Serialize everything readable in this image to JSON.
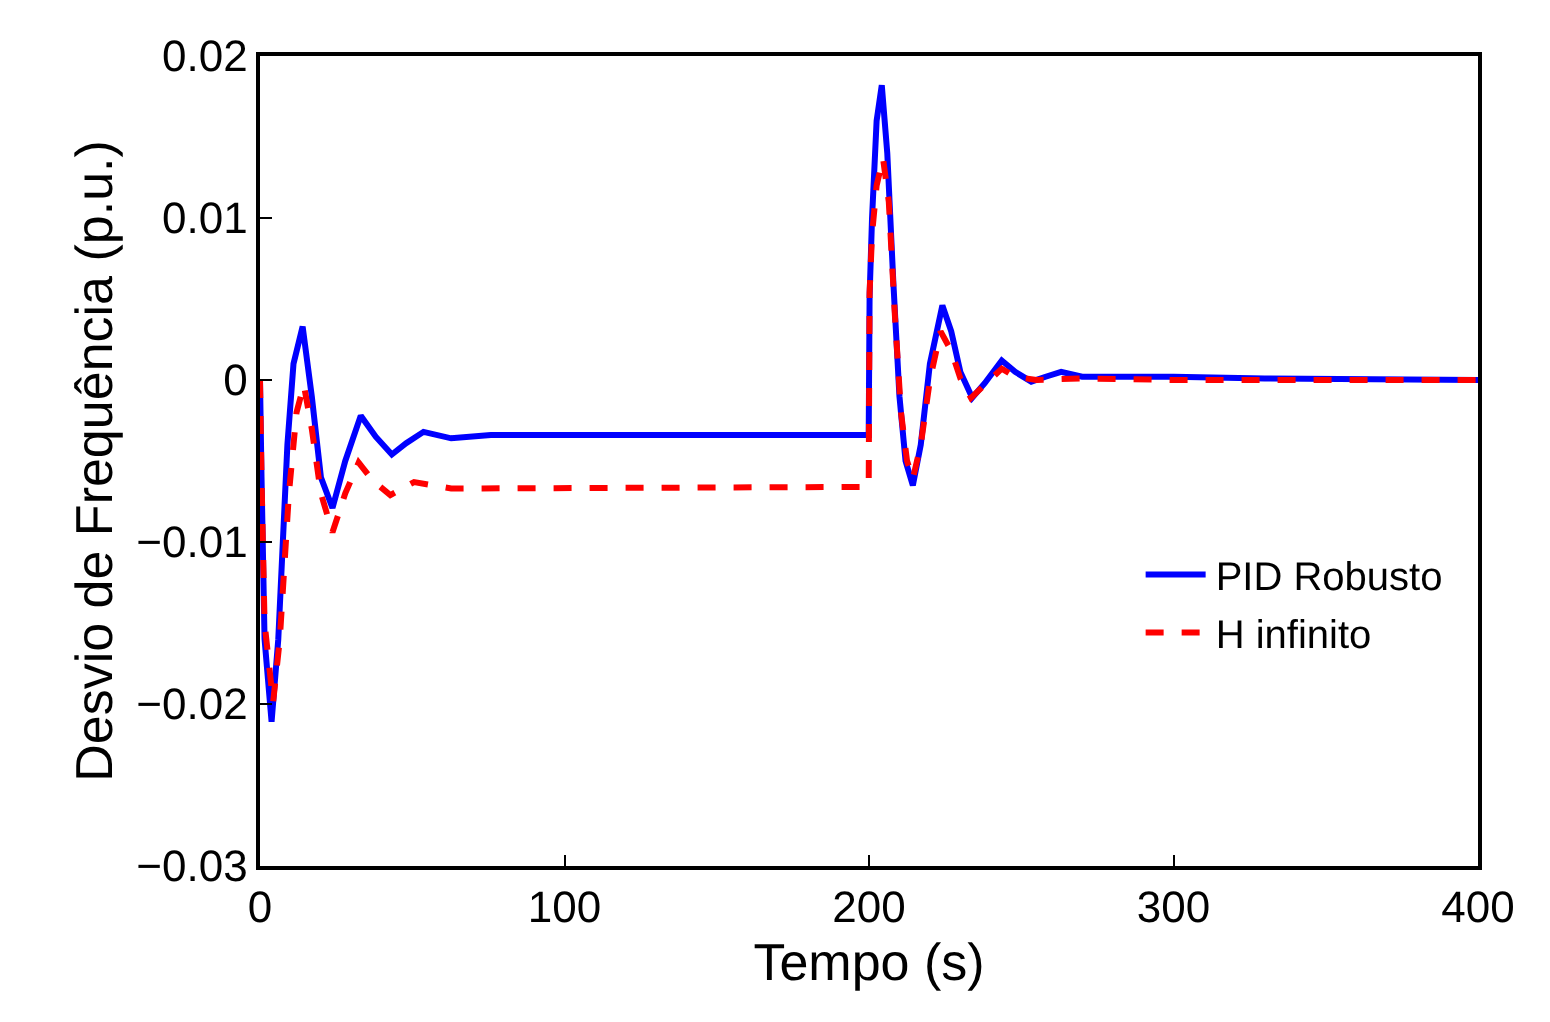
{
  "chart_data": {
    "type": "line",
    "xlabel": "Tempo (s)",
    "ylabel": "Desvio de Frequência (p.u.)",
    "xlim": [
      0,
      400
    ],
    "ylim": [
      -0.03,
      0.02
    ],
    "xticks": [
      0,
      100,
      200,
      300,
      400
    ],
    "yticks": [
      {
        "value": -0.03,
        "label": "−0.03"
      },
      {
        "value": -0.02,
        "label": "−0.02"
      },
      {
        "value": -0.01,
        "label": "−0.01"
      },
      0,
      0.01,
      0.02
    ],
    "legend": "bottom right",
    "marker": "none",
    "series": [
      {
        "name": "PID Robusto",
        "color": "#0000ff",
        "line_style": "solid",
        "x": [
          0,
          0.5,
          1.5,
          3.8,
          6,
          9,
          11,
          14,
          17,
          20,
          23.8,
          28,
          33.1,
          38,
          43.3,
          48,
          53.7,
          62.8,
          75.8,
          199.9,
          200.2,
          201,
          202.5,
          204.2,
          206,
          208,
          210,
          212,
          214.4,
          217,
          220,
          224.1,
          227,
          230,
          233.9,
          238,
          243.6,
          248,
          253.3,
          258,
          263.1,
          270,
          300,
          330,
          400
        ],
        "values": [
          0,
          -0.006,
          -0.016,
          -0.0211,
          -0.016,
          -0.004,
          0.001,
          0.0033,
          -0.001,
          -0.006,
          -0.0079,
          -0.005,
          -0.0022,
          -0.0035,
          -0.0046,
          -0.0039,
          -0.0032,
          -0.0036,
          -0.0034,
          -0.0034,
          0.0052,
          0.01,
          0.016,
          0.0182,
          0.014,
          0.006,
          -0.001,
          -0.005,
          -0.0065,
          -0.004,
          0.001,
          0.0046,
          0.003,
          0.0005,
          -0.0011,
          -0.0002,
          0.0012,
          0.0005,
          -0.0001,
          0.0002,
          0.0005,
          0.0002,
          0.0002,
          0.0001,
          0
        ]
      },
      {
        "name": "H infinito",
        "color": "#ff0000",
        "line_style": "dashed",
        "x": [
          0,
          0.5,
          1.5,
          4.3,
          6.5,
          9.5,
          12,
          14.4,
          17,
          20,
          23.8,
          28,
          32.4,
          37,
          42.8,
          50.6,
          62.8,
          199.9,
          200.2,
          201,
          202.5,
          204.6,
          206.5,
          208.5,
          210.5,
          212.5,
          214.4,
          217,
          220,
          223.5,
          227,
          230,
          233.5,
          238,
          243.6,
          248,
          255,
          270,
          300,
          400
        ],
        "values": [
          0,
          -0.006,
          -0.015,
          -0.0199,
          -0.016,
          -0.007,
          -0.002,
          -0.0003,
          -0.003,
          -0.007,
          -0.0094,
          -0.007,
          -0.0051,
          -0.0062,
          -0.0071,
          -0.0063,
          -0.0067,
          -0.0066,
          0.0054,
          0.009,
          0.012,
          0.0137,
          0.011,
          0.004,
          -0.002,
          -0.005,
          -0.0061,
          -0.004,
          0,
          0.003,
          0.0018,
          0.0001,
          -0.0011,
          -0.0003,
          0.0007,
          0.0002,
          0,
          0.0001,
          0,
          0
        ]
      }
    ]
  }
}
